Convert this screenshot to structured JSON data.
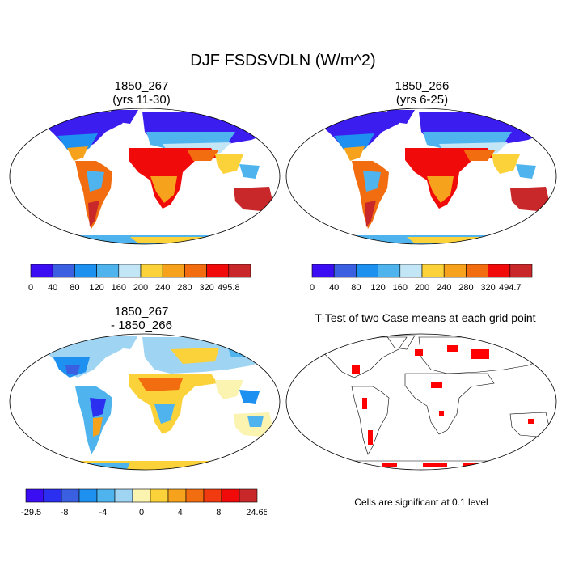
{
  "figure": {
    "title": "DJF FSDSVDLN (W/m^2)",
    "panels": [
      {
        "id": "case1",
        "title_line1": "1850_267",
        "title_line2": "(yrs 11-30)"
      },
      {
        "id": "case2",
        "title_line1": "1850_266",
        "title_line2": "(yrs 6-25)"
      },
      {
        "id": "diff",
        "title_line1": "1850_267",
        "title_line2": "- 1850_266"
      },
      {
        "id": "ttest",
        "title_line1": "T-Test of two Case means at each grid point",
        "title_line2": ""
      }
    ],
    "note": "Cells are significant at 0.1 level"
  },
  "colorbars": {
    "case1": {
      "colors": [
        "#3b0df2",
        "#3a5fe0",
        "#1e90f0",
        "#4fb4ee",
        "#c3e6f6",
        "#fbd23a",
        "#f7a21c",
        "#f26c10",
        "#f00a0a",
        "#c8282a"
      ],
      "labels": [
        "0",
        "40",
        "80",
        "120",
        "160",
        "200",
        "240",
        "280",
        "320",
        "495.8"
      ]
    },
    "case2": {
      "colors": [
        "#3b0df2",
        "#3a5fe0",
        "#1e90f0",
        "#4fb4ee",
        "#c3e6f6",
        "#fbd23a",
        "#f7a21c",
        "#f26c10",
        "#f00a0a",
        "#c8282a"
      ],
      "labels": [
        "0",
        "40",
        "80",
        "120",
        "160",
        "200",
        "240",
        "280",
        "320",
        "494.7"
      ]
    },
    "diff": {
      "colors": [
        "#3b0df2",
        "#2a2ff0",
        "#3a5fe0",
        "#1e90f0",
        "#4fb4ee",
        "#9fd4f2",
        "#fbf3b0",
        "#fbd23a",
        "#f7a21c",
        "#f26c10",
        "#f23a10",
        "#f00a0a",
        "#c8282a"
      ],
      "labels": [
        "-29.5",
        "-8",
        "-4",
        "0",
        "4",
        "8",
        "24.65"
      ]
    }
  },
  "legend_colors": {
    "significant": "#ff0000",
    "land_outline": "#000000"
  }
}
